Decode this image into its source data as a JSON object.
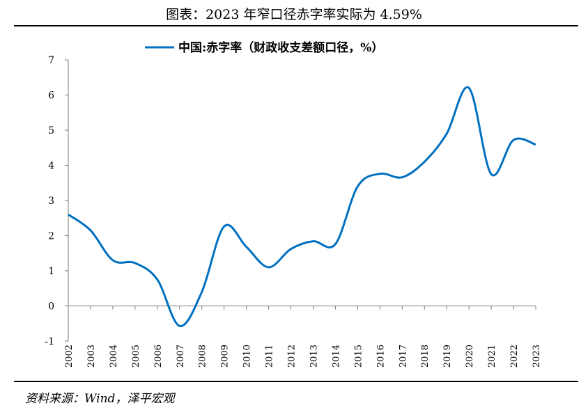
{
  "title": "图表：2023 年窄口径赤字率实际为 4.59%",
  "source": "资料来源：Wind，泽平宏观",
  "chart_data": {
    "type": "line",
    "title": "",
    "xlabel": "",
    "ylabel": "",
    "ylim": [
      -1,
      7
    ],
    "yticks": [
      -1,
      0,
      1,
      2,
      3,
      4,
      5,
      6,
      7
    ],
    "grid": false,
    "legend_position": "top-center",
    "x": [
      "2002",
      "2003",
      "2004",
      "2005",
      "2006",
      "2007",
      "2008",
      "2009",
      "2010",
      "2011",
      "2012",
      "2013",
      "2014",
      "2015",
      "2016",
      "2017",
      "2018",
      "2019",
      "2020",
      "2021",
      "2022",
      "2023"
    ],
    "series": [
      {
        "name": "中国:赤字率（财政收支差额口径，%）",
        "color": "#0070C0",
        "values": [
          2.6,
          2.15,
          1.3,
          1.22,
          0.75,
          -0.57,
          0.4,
          2.26,
          1.68,
          1.1,
          1.62,
          1.84,
          1.76,
          3.4,
          3.76,
          3.66,
          4.1,
          4.9,
          6.2,
          3.75,
          4.72,
          4.59
        ]
      }
    ]
  }
}
